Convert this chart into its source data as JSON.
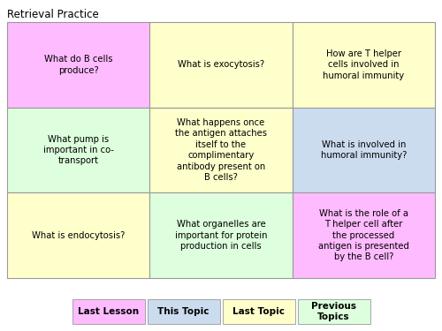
{
  "title": "Retrieval Practice",
  "grid": [
    [
      {
        "text": "What do B cells\nproduce?",
        "color": "#ffbbff"
      },
      {
        "text": "What is exocytosis?",
        "color": "#ffffcc"
      },
      {
        "text": "How are T helper\ncells involved in\nhumoral immunity",
        "color": "#ffffcc"
      }
    ],
    [
      {
        "text": "What pump is\nimportant in co-\ntransport",
        "color": "#ddffdd"
      },
      {
        "text": "What happens once\nthe antigen attaches\nitself to the\ncomplimentary\nantibody present on\nB cells?",
        "color": "#ffffcc"
      },
      {
        "text": "What is involved in\nhumoral immunity?",
        "color": "#ccdcef"
      }
    ],
    [
      {
        "text": "What is endocytosis?",
        "color": "#ffffcc"
      },
      {
        "text": "What organelles are\nimportant for protein\nproduction in cells",
        "color": "#ddffdd"
      },
      {
        "text": "What is the role of a\nT helper cell after\nthe processed\nantigen is presented\nby the B cell?",
        "color": "#ffbbff"
      }
    ]
  ],
  "legend": [
    {
      "label": "Last Lesson",
      "color": "#ffbbff"
    },
    {
      "label": "This Topic",
      "color": "#ccdcef"
    },
    {
      "label": "Last Topic",
      "color": "#ffffcc"
    },
    {
      "label": "Previous\nTopics",
      "color": "#ddffdd"
    }
  ],
  "border_color": "#999999",
  "text_color": "#000000",
  "bg_color": "#ffffff",
  "title_fontsize": 8.5,
  "cell_fontsize": 7.2,
  "legend_fontsize": 7.5
}
